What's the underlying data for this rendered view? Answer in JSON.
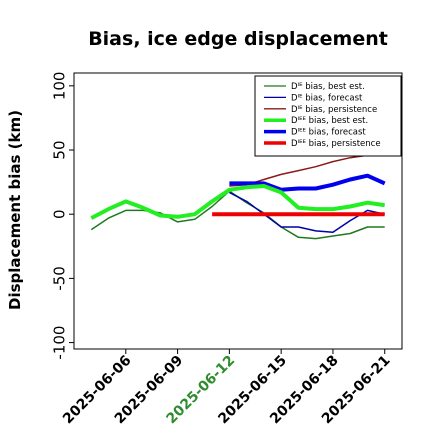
{
  "chart_data": {
    "type": "line",
    "title": "Bias, ice edge displacement",
    "xlabel": "",
    "ylabel": "Displacement bias (km)",
    "ylim": [
      -105,
      110
    ],
    "yticks": [
      -100,
      -50,
      0,
      50,
      100
    ],
    "xlim": [
      "2025-06-03",
      "2025-06-22"
    ],
    "xticks": [
      "2025-06-06",
      "2025-06-09",
      "2025-06-12",
      "2025-06-15",
      "2025-06-18",
      "2025-06-21"
    ],
    "highlighted_xtick": "2025-06-12",
    "highlight_color": "#2e8b2e",
    "grid": false,
    "legend_position": "upper right",
    "series": [
      {
        "name": "Dᴵᴱ bias, best est.",
        "color": "#1f7a1f",
        "width": 1.5,
        "x": [
          "2025-06-04",
          "2025-06-05",
          "2025-06-06",
          "2025-06-07",
          "2025-06-08",
          "2025-06-09",
          "2025-06-10",
          "2025-06-11",
          "2025-06-12",
          "2025-06-13",
          "2025-06-14",
          "2025-06-15",
          "2025-06-16",
          "2025-06-17",
          "2025-06-18",
          "2025-06-19",
          "2025-06-20",
          "2025-06-21"
        ],
        "y": [
          -12,
          -3,
          3,
          3,
          1,
          -6,
          -4,
          6,
          18,
          9,
          1,
          -10,
          -18,
          -19,
          -17,
          -15,
          -10,
          -10
        ]
      },
      {
        "name": "Dᴵᴱ bias, forecast",
        "color": "#0000aa",
        "width": 1.5,
        "x": [
          "2025-06-12",
          "2025-06-13",
          "2025-06-14",
          "2025-06-15",
          "2025-06-16",
          "2025-06-17",
          "2025-06-18",
          "2025-06-19",
          "2025-06-20",
          "2025-06-21"
        ],
        "y": [
          17,
          10,
          0,
          -10,
          -10,
          -13,
          -14,
          -5,
          3,
          0
        ]
      },
      {
        "name": "Dᴵᴱ bias, persistence",
        "color": "#8b1a1a",
        "width": 1.5,
        "x": [
          "2025-06-12",
          "2025-06-13",
          "2025-06-14",
          "2025-06-15",
          "2025-06-16",
          "2025-06-17",
          "2025-06-18",
          "2025-06-19",
          "2025-06-20",
          "2025-06-21"
        ],
        "y": [
          22,
          23,
          27,
          31,
          34,
          37,
          41,
          44,
          46,
          49
        ]
      },
      {
        "name": "Dᴵᴱᴱ bias, best est.",
        "color": "#22ee22",
        "width": 4,
        "x": [
          "2025-06-04",
          "2025-06-05",
          "2025-06-06",
          "2025-06-07",
          "2025-06-08",
          "2025-06-09",
          "2025-06-10",
          "2025-06-11",
          "2025-06-12",
          "2025-06-13",
          "2025-06-14",
          "2025-06-15",
          "2025-06-16",
          "2025-06-17",
          "2025-06-18",
          "2025-06-19",
          "2025-06-20",
          "2025-06-21"
        ],
        "y": [
          -3,
          4,
          10,
          5,
          -1,
          -2,
          0,
          10,
          19,
          21,
          22,
          17,
          5,
          4,
          4,
          6,
          9,
          7
        ]
      },
      {
        "name": "Dᴵᴱᴱ bias, forecast",
        "color": "#0000ee",
        "width": 4,
        "x": [
          "2025-06-12",
          "2025-06-13",
          "2025-06-14",
          "2025-06-15",
          "2025-06-16",
          "2025-06-17",
          "2025-06-18",
          "2025-06-19",
          "2025-06-20",
          "2025-06-21"
        ],
        "y": [
          24,
          24,
          24,
          19,
          20,
          20,
          23,
          27,
          30,
          24
        ]
      },
      {
        "name": "Dᴵᴱᴱ bias, persistence",
        "color": "#ee0000",
        "width": 4,
        "x": [
          "2025-06-11",
          "2025-06-21"
        ],
        "y": [
          0,
          0
        ]
      }
    ]
  }
}
